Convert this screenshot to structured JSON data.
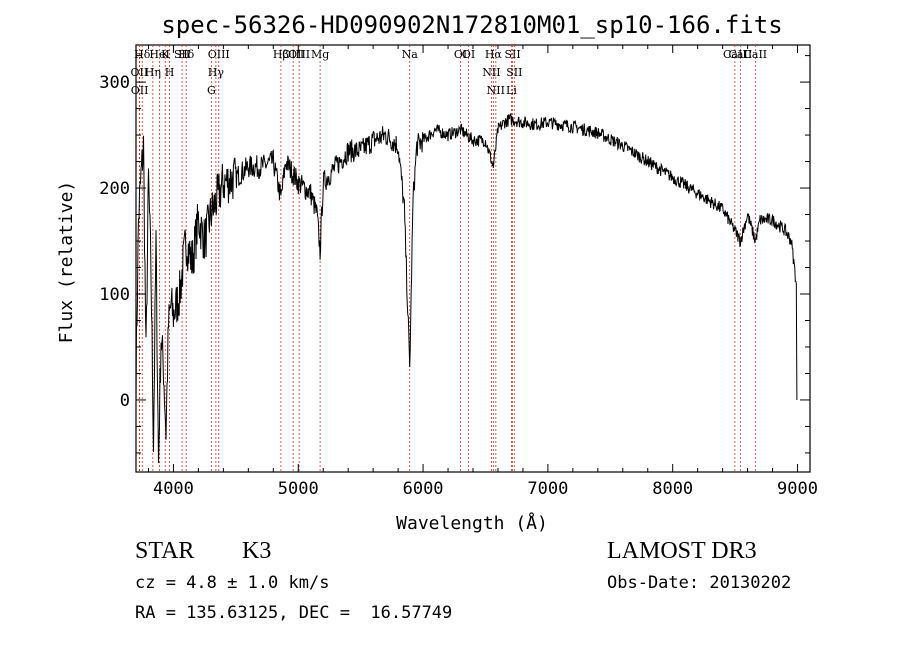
{
  "chart_data": {
    "type": "line",
    "title": "spec-56326-HD090902N172810M01_sp10-166.fits",
    "xlabel": "Wavelength (Å)",
    "ylabel": "Flux (relative)",
    "xlim": [
      3700,
      9100
    ],
    "ylim": [
      -68,
      335
    ],
    "xticks": [
      4000,
      5000,
      6000,
      7000,
      8000,
      9000
    ],
    "yticks": [
      0,
      100,
      200,
      300
    ],
    "grid": false,
    "series": [
      {
        "name": "flux",
        "x": [
          3700,
          3720,
          3740,
          3760,
          3780,
          3800,
          3820,
          3840,
          3860,
          3880,
          3900,
          3920,
          3940,
          3960,
          3980,
          4000,
          4050,
          4100,
          4150,
          4200,
          4250,
          4300,
          4350,
          4400,
          4500,
          4600,
          4700,
          4800,
          4861,
          4900,
          5000,
          5100,
          5150,
          5175,
          5200,
          5300,
          5400,
          5500,
          5600,
          5700,
          5800,
          5850,
          5893,
          5920,
          5950,
          6000,
          6050,
          6100,
          6200,
          6300,
          6400,
          6500,
          6563,
          6600,
          6650,
          6700,
          6800,
          6900,
          7000,
          7200,
          7400,
          7600,
          7800,
          8000,
          8200,
          8400,
          8498,
          8542,
          8600,
          8662,
          8700,
          8800,
          8900,
          8950,
          8990
        ],
        "y": [
          20,
          170,
          210,
          240,
          40,
          210,
          120,
          -40,
          150,
          -60,
          60,
          30,
          -30,
          70,
          90,
          80,
          100,
          150,
          130,
          170,
          150,
          175,
          190,
          205,
          210,
          220,
          220,
          225,
          190,
          225,
          205,
          195,
          175,
          140,
          205,
          220,
          235,
          235,
          245,
          250,
          240,
          180,
          30,
          190,
          240,
          245,
          250,
          255,
          250,
          255,
          245,
          245,
          220,
          255,
          262,
          265,
          262,
          260,
          262,
          258,
          252,
          240,
          225,
          210,
          195,
          180,
          160,
          150,
          175,
          150,
          170,
          170,
          160,
          150,
          110
        ]
      }
    ],
    "line_markers": [
      {
        "name": "Hδ",
        "x": 3750
      },
      {
        "name": "OII",
        "x": 3727
      },
      {
        "name": "OII",
        "x": 3729
      },
      {
        "name": "HeI",
        "x": 3889
      },
      {
        "name": "Hη",
        "x": 3835
      },
      {
        "name": "K",
        "x": 3934
      },
      {
        "name": "H",
        "x": 3969
      },
      {
        "name": "SII",
        "x": 4069
      },
      {
        "name": "Hδ",
        "x": 4102
      },
      {
        "name": "OIII",
        "x": 4363
      },
      {
        "name": "Hγ",
        "x": 4340
      },
      {
        "name": "G",
        "x": 4304
      },
      {
        "name": "Hβ",
        "x": 4861
      },
      {
        "name": "OIII",
        "x": 4959
      },
      {
        "name": "OIII",
        "x": 5007
      },
      {
        "name": "Mg",
        "x": 5175
      },
      {
        "name": "Na",
        "x": 5893
      },
      {
        "name": "OI",
        "x": 6300
      },
      {
        "name": "OI",
        "x": 6364
      },
      {
        "name": "Hα",
        "x": 6563
      },
      {
        "name": "NII",
        "x": 6548
      },
      {
        "name": "NII",
        "x": 6583
      },
      {
        "name": "SII",
        "x": 6717
      },
      {
        "name": "SII",
        "x": 6731
      },
      {
        "name": "Li",
        "x": 6708
      },
      {
        "name": "CaII",
        "x": 8498
      },
      {
        "name": "CaII",
        "x": 8542
      },
      {
        "name": "CaII",
        "x": 8662
      }
    ]
  },
  "footer": {
    "class_label": "STAR",
    "subclass": "K3",
    "survey": "LAMOST DR3",
    "cz": "cz = 4.8 ± 1.0 km/s",
    "obs_date": "Obs-Date: 20130202",
    "radec": "RA = 135.63125, DEC =  16.57749"
  }
}
